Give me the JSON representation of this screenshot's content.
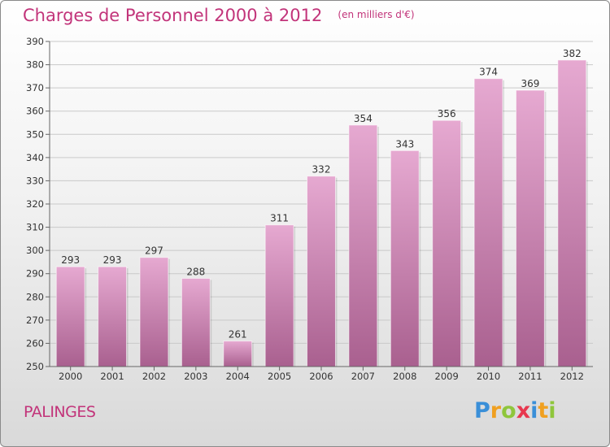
{
  "header": {
    "title": "Charges de Personnel 2000 à 2012",
    "subtitle": "(en milliers d'€)"
  },
  "footer": {
    "place": "PALINGES",
    "brand_letters": [
      "P",
      "r",
      "o",
      "x",
      "i",
      "t",
      "i"
    ],
    "brand_colors": [
      "#3a8fd8",
      "#f0a020",
      "#8fc63c",
      "#e8384f",
      "#3a8fd8",
      "#f0a020",
      "#8fc63c"
    ]
  },
  "colors": {
    "bar_top": "#e6a9d1",
    "bar_bottom": "#a9608f",
    "accent": "#c2347a"
  },
  "chart_data": {
    "type": "bar",
    "categories": [
      "2000",
      "2001",
      "2002",
      "2003",
      "2004",
      "2005",
      "2006",
      "2007",
      "2008",
      "2009",
      "2010",
      "2011",
      "2012"
    ],
    "values": [
      293,
      293,
      297,
      288,
      261,
      311,
      332,
      354,
      343,
      356,
      374,
      369,
      382
    ],
    "data_labels": [
      "293",
      "293",
      "297",
      "288",
      "261",
      "311",
      "332",
      "354",
      "343",
      "356",
      "374",
      "369",
      "382"
    ],
    "y_ticks": [
      "250",
      "260",
      "270",
      "280",
      "290",
      "300",
      "310",
      "320",
      "330",
      "340",
      "350",
      "360",
      "370",
      "380",
      "390"
    ],
    "ylim": [
      250,
      390
    ],
    "grid": true,
    "legend": "none"
  }
}
